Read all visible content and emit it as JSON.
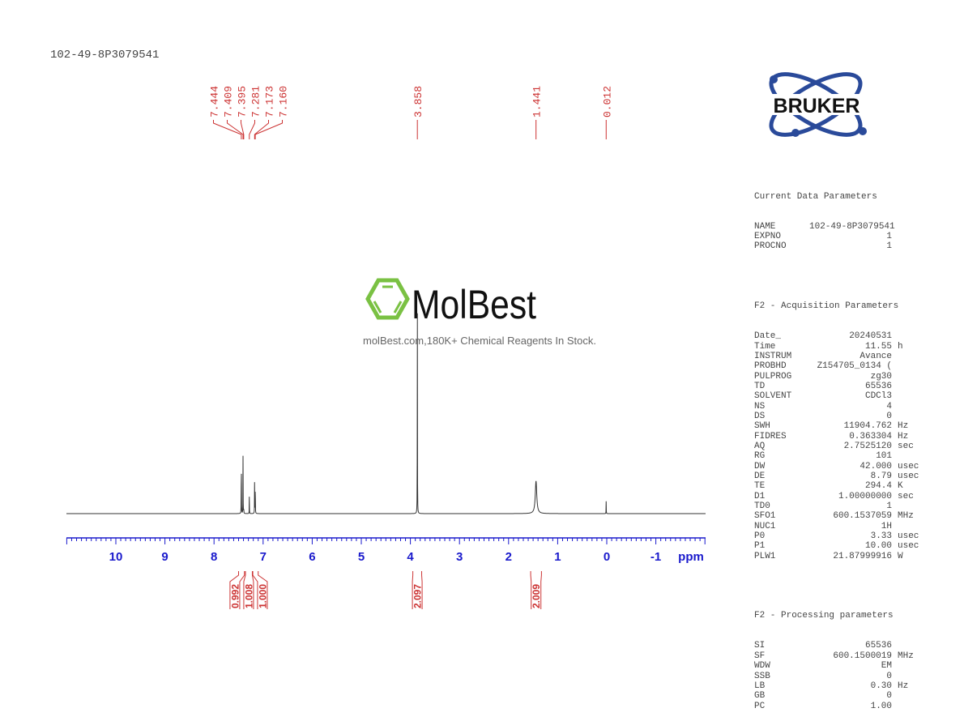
{
  "title": "102-49-8P3079541",
  "logo": {
    "brand": "BRUKER",
    "watermark": "MolBest",
    "watermark_tagline": "molBest.com,180K+ Chemical Reagents In Stock."
  },
  "colors": {
    "axis": "#1a1acc",
    "labels": "#cc3333",
    "spectrum": "#333333",
    "watermark_green": "#7ac143"
  },
  "params": {
    "current_header": "Current Data Parameters",
    "current": [
      {
        "k": "NAME",
        "v": "102-49-8P3079541",
        "u": ""
      },
      {
        "k": "EXPNO",
        "v": "1",
        "u": ""
      },
      {
        "k": "PROCNO",
        "v": "1",
        "u": ""
      }
    ],
    "acq_header": "F2 - Acquisition Parameters",
    "acq": [
      {
        "k": "Date_",
        "v": "20240531",
        "u": ""
      },
      {
        "k": "Time",
        "v": "11.55",
        "u": "h"
      },
      {
        "k": "INSTRUM",
        "v": "Avance",
        "u": ""
      },
      {
        "k": "PROBHD",
        "v": "Z154705_0134 (",
        "u": ""
      },
      {
        "k": "PULPROG",
        "v": "zg30",
        "u": ""
      },
      {
        "k": "TD",
        "v": "65536",
        "u": ""
      },
      {
        "k": "SOLVENT",
        "v": "CDCl3",
        "u": ""
      },
      {
        "k": "NS",
        "v": "4",
        "u": ""
      },
      {
        "k": "DS",
        "v": "0",
        "u": ""
      },
      {
        "k": "SWH",
        "v": "11904.762",
        "u": "Hz"
      },
      {
        "k": "FIDRES",
        "v": "0.363304",
        "u": "Hz"
      },
      {
        "k": "AQ",
        "v": "2.7525120",
        "u": "sec"
      },
      {
        "k": "RG",
        "v": "101",
        "u": ""
      },
      {
        "k": "DW",
        "v": "42.000",
        "u": "usec"
      },
      {
        "k": "DE",
        "v": "8.79",
        "u": "usec"
      },
      {
        "k": "TE",
        "v": "294.4",
        "u": "K"
      },
      {
        "k": "D1",
        "v": "1.00000000",
        "u": "sec"
      },
      {
        "k": "TD0",
        "v": "1",
        "u": ""
      },
      {
        "k": "SFO1",
        "v": "600.1537059",
        "u": "MHz"
      },
      {
        "k": "NUC1",
        "v": "1H",
        "u": ""
      },
      {
        "k": "P0",
        "v": "3.33",
        "u": "usec"
      },
      {
        "k": "P1",
        "v": "10.00",
        "u": "usec"
      },
      {
        "k": "PLW1",
        "v": "21.87999916",
        "u": "W"
      }
    ],
    "proc_header": "F2 - Processing parameters",
    "proc": [
      {
        "k": "SI",
        "v": "65536",
        "u": ""
      },
      {
        "k": "SF",
        "v": "600.1500019",
        "u": "MHz"
      },
      {
        "k": "WDW",
        "v": "EM",
        "u": ""
      },
      {
        "k": "SSB",
        "v": "0",
        "u": ""
      },
      {
        "k": "LB",
        "v": "0.30",
        "u": "Hz"
      },
      {
        "k": "GB",
        "v": "0",
        "u": ""
      },
      {
        "k": "PC",
        "v": "1.00",
        "u": ""
      }
    ]
  },
  "chart_data": {
    "type": "line",
    "xlabel": "ppm",
    "xlim": [
      11.0,
      -2.0
    ],
    "x_reversed": true,
    "xticks": [
      10,
      9,
      8,
      7,
      6,
      5,
      4,
      3,
      2,
      1,
      0,
      -1
    ],
    "xtick_labels": [
      "10",
      "9",
      "8",
      "7",
      "6",
      "5",
      "4",
      "3",
      "2",
      "1",
      "0",
      "-1"
    ],
    "grid": false,
    "peaks": [
      {
        "ppm": 7.444,
        "label": "7.444",
        "intensity": 0.33
      },
      {
        "ppm": 7.409,
        "label": "7.409",
        "intensity": 0.25
      },
      {
        "ppm": 7.395,
        "label": "7.395",
        "intensity": 0.03
      },
      {
        "ppm": 7.281,
        "label": "7.281",
        "intensity": 0.075
      },
      {
        "ppm": 7.173,
        "label": "7.173",
        "intensity": 0.18
      },
      {
        "ppm": 7.16,
        "label": "7.160",
        "intensity": 0.17
      },
      {
        "ppm": 3.858,
        "label": "3.858",
        "intensity": 1.0
      },
      {
        "ppm": 1.441,
        "label": "1.441",
        "intensity": 0.14,
        "broad": true
      },
      {
        "ppm": 0.012,
        "label": "0.012",
        "intensity": 0.055
      }
    ],
    "integrals": [
      {
        "from": 7.5,
        "to": 7.38,
        "center": 7.43,
        "value": "0.992"
      },
      {
        "from": 7.36,
        "to": 7.22,
        "center": 7.28,
        "value": "1.008"
      },
      {
        "from": 7.21,
        "to": 7.1,
        "center": 7.16,
        "value": "1.000"
      },
      {
        "from": 3.95,
        "to": 3.77,
        "center": 3.858,
        "value": "2.097"
      },
      {
        "from": 1.55,
        "to": 1.33,
        "center": 1.441,
        "value": "2.009"
      }
    ]
  }
}
